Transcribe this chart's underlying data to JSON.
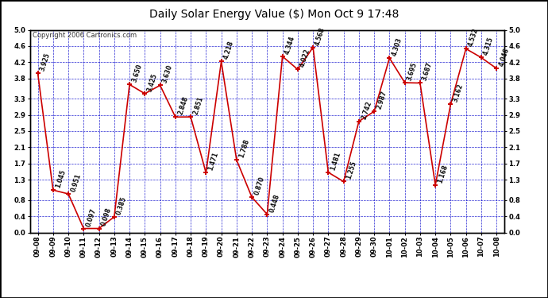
{
  "title": "Daily Solar Energy Value ($) Mon Oct 9 17:48",
  "copyright": "Copyright 2006 Cartronics.com",
  "dates": [
    "09-08",
    "09-09",
    "09-10",
    "09-11",
    "09-12",
    "09-13",
    "09-14",
    "09-15",
    "09-16",
    "09-17",
    "09-18",
    "09-19",
    "09-20",
    "09-21",
    "09-22",
    "09-23",
    "09-24",
    "09-25",
    "09-26",
    "09-27",
    "09-28",
    "09-29",
    "09-30",
    "10-01",
    "10-02",
    "10-03",
    "10-04",
    "10-05",
    "10-06",
    "10-07",
    "10-08"
  ],
  "values": [
    3.925,
    1.045,
    0.951,
    0.097,
    0.098,
    0.385,
    3.65,
    3.425,
    3.63,
    2.848,
    2.851,
    1.471,
    4.218,
    1.788,
    0.87,
    0.448,
    4.344,
    4.022,
    4.568,
    1.481,
    1.255,
    2.742,
    2.987,
    4.303,
    3.695,
    3.687,
    1.168,
    3.162,
    4.532,
    4.315,
    4.046
  ],
  "ylim": [
    0.0,
    5.0
  ],
  "yticks": [
    0.0,
    0.4,
    0.8,
    1.3,
    1.7,
    2.1,
    2.5,
    2.9,
    3.3,
    3.8,
    4.2,
    4.6,
    5.0
  ],
  "line_color": "#cc0000",
  "marker_color": "#cc0000",
  "bg_color": "#ffffff",
  "grid_color": "#0000cc",
  "title_fontsize": 10,
  "tick_fontsize": 6,
  "annot_fontsize": 5.5,
  "copyright_fontsize": 6
}
